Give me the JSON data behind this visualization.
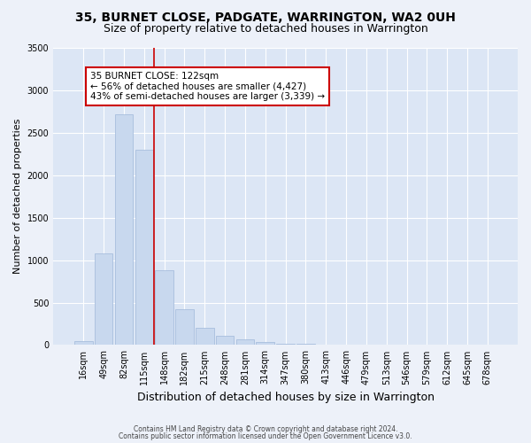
{
  "title1": "35, BURNET CLOSE, PADGATE, WARRINGTON, WA2 0UH",
  "title2": "Size of property relative to detached houses in Warrington",
  "xlabel": "Distribution of detached houses by size in Warrington",
  "ylabel": "Number of detached properties",
  "categories": [
    "16sqm",
    "49sqm",
    "82sqm",
    "115sqm",
    "148sqm",
    "182sqm",
    "215sqm",
    "248sqm",
    "281sqm",
    "314sqm",
    "347sqm",
    "380sqm",
    "413sqm",
    "446sqm",
    "479sqm",
    "513sqm",
    "546sqm",
    "579sqm",
    "612sqm",
    "645sqm",
    "678sqm"
  ],
  "values": [
    50,
    1080,
    2720,
    2300,
    880,
    420,
    200,
    110,
    65,
    35,
    18,
    10,
    6,
    4,
    2,
    1,
    1,
    0,
    0,
    0,
    0
  ],
  "bar_color": "#c8d8ee",
  "bar_edge_color": "#a8bedd",
  "vline_x_index": 3,
  "vline_color": "#cc0000",
  "annotation_text": "35 BURNET CLOSE: 122sqm\n← 56% of detached houses are smaller (4,427)\n43% of semi-detached houses are larger (3,339) →",
  "annotation_box_color": "white",
  "annotation_box_edge_color": "#cc0000",
  "ylim": [
    0,
    3500
  ],
  "yticks": [
    0,
    500,
    1000,
    1500,
    2000,
    2500,
    3000,
    3500
  ],
  "footnote1": "Contains HM Land Registry data © Crown copyright and database right 2024.",
  "footnote2": "Contains public sector information licensed under the Open Government Licence v3.0.",
  "bg_color": "#edf1f9",
  "plot_bg_color": "#dce6f5",
  "title1_fontsize": 10,
  "title2_fontsize": 9,
  "ylabel_fontsize": 8,
  "xlabel_fontsize": 9,
  "tick_fontsize": 7,
  "annot_fontsize": 7.5,
  "footnote_fontsize": 5.5
}
